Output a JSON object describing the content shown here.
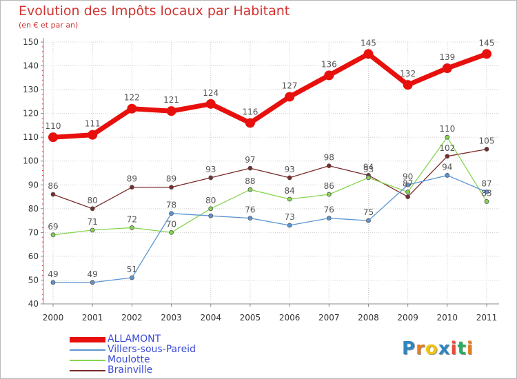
{
  "header": {
    "title": "Evolution des Impôts locaux par Habitant",
    "subtitle": "(en € et par an)"
  },
  "chart_data": {
    "type": "line",
    "title": "Evolution des Impôts locaux par Habitant",
    "subtitle": "(en € et par an)",
    "xlabel": "",
    "ylabel": "",
    "x": [
      "2000",
      "2001",
      "2002",
      "2003",
      "2004",
      "2005",
      "2006",
      "2007",
      "2008",
      "2009",
      "2010",
      "2011"
    ],
    "ylim": [
      40,
      150
    ],
    "yticks": [
      "40",
      "50",
      "60",
      "70",
      "80",
      "90",
      "100",
      "110",
      "120",
      "130",
      "140",
      "150"
    ],
    "grid": true,
    "legend_position": "bottom-left",
    "series": [
      {
        "name": "ALLAMONT",
        "color": "#e8100c",
        "values": [
          110,
          111,
          122,
          121,
          124,
          116,
          127,
          136,
          145,
          132,
          139,
          145
        ],
        "labels": [
          "110",
          "111",
          "122",
          "121",
          "124",
          "116",
          "127",
          "136",
          "145",
          "132",
          "139",
          "145"
        ]
      },
      {
        "name": "Villers-sous-Pareid",
        "color": "#5b95d1",
        "values": [
          49,
          49,
          51,
          78,
          77,
          76,
          73,
          76,
          75,
          90,
          94,
          87
        ],
        "labels": [
          "49",
          "49",
          "51",
          "78",
          "",
          "76",
          "73",
          "76",
          "75",
          "90",
          "94",
          "87"
        ]
      },
      {
        "name": "Moulotte",
        "color": "#86d64f",
        "values": [
          69,
          71,
          72,
          70,
          80,
          88,
          84,
          86,
          93,
          87,
          110,
          83
        ],
        "labels": [
          "69",
          "71",
          "72",
          "70",
          "80",
          "88",
          "84",
          "86",
          "93",
          "87",
          "110",
          "83"
        ]
      },
      {
        "name": "Brainville",
        "color": "#7a2b2b",
        "values": [
          86,
          80,
          89,
          89,
          93,
          97,
          93,
          98,
          94,
          85,
          102,
          105
        ],
        "labels": [
          "86",
          "80",
          "89",
          "89",
          "93",
          "97",
          "93",
          "98",
          "94",
          "",
          "102",
          "105"
        ]
      }
    ]
  },
  "logo": {
    "letters": [
      "P",
      "r",
      "o",
      "x",
      "i",
      "t",
      "i"
    ],
    "colors": [
      "#2e86c1",
      "#e67e22",
      "#f1c40f",
      "#2e86c1",
      "#e74c3c",
      "#27ae60",
      "#e67e22"
    ]
  }
}
